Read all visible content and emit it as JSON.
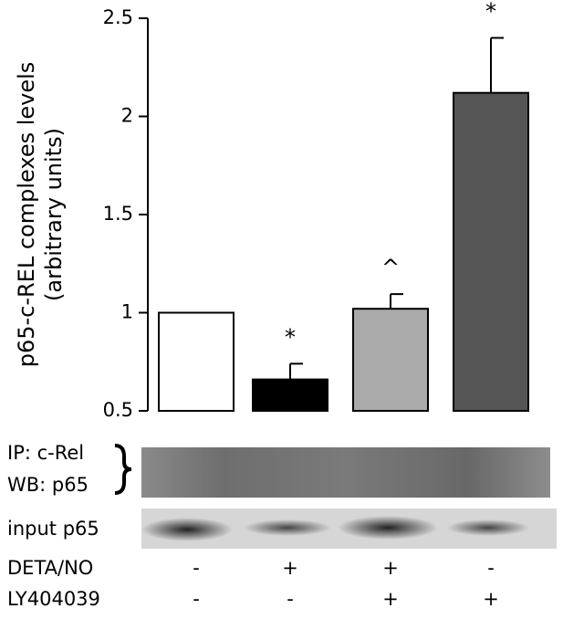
{
  "chart_data": {
    "type": "bar",
    "ylabel": [
      "p65-c-REL complexes levels",
      "(arbitrary units)"
    ],
    "categories": [
      null,
      null,
      null,
      null
    ],
    "values": [
      1.0,
      0.66,
      1.02,
      2.12
    ],
    "errors": [
      null,
      0.08,
      0.075,
      0.28
    ],
    "annotations": [
      null,
      "*",
      "^",
      "*"
    ],
    "colors": [
      "#ffffff",
      "#000000",
      "#aaaaaa",
      "#555555"
    ],
    "ylim": [
      0.5,
      2.5
    ],
    "yticks": [
      0.5,
      1,
      1.5,
      2,
      2.5
    ],
    "blot_labels": [
      "IP: c-Rel",
      "WB: p65",
      "input p65"
    ],
    "treatments": [
      {
        "name": "DETA/NO",
        "signs": [
          "-",
          "+",
          "+",
          "-"
        ]
      },
      {
        "name": "LY404039",
        "signs": [
          "-",
          "-",
          "+",
          "+"
        ]
      }
    ]
  }
}
